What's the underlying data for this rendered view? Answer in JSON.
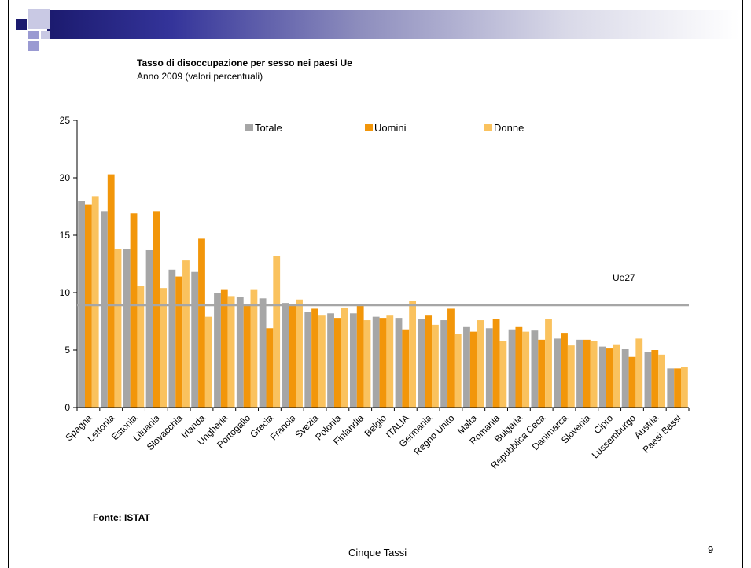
{
  "slide": {
    "footer": "Cinque Tassi",
    "page_number": "9",
    "source": "Fonte: ISTAT"
  },
  "chart_data": {
    "type": "bar",
    "title": "Tasso di disoccupazione per sesso nei paesi Ue",
    "subtitle": "Anno 2009 (valori percentuali)",
    "xlabel": "",
    "ylabel": "",
    "ylim": [
      0,
      25
    ],
    "yticks": [
      0,
      5,
      10,
      15,
      20,
      25
    ],
    "grid": false,
    "legend_position": "top",
    "categories": [
      "Spagna",
      "Lettonia",
      "Estonia",
      "Lituania",
      "Slovacchia",
      "Irlanda",
      "Ungheria",
      "Portogallo",
      "Grecia",
      "Francia",
      "Svezia",
      "Polonia",
      "Finlandia",
      "Belgio",
      "ITALIA",
      "Germania",
      "Regno Unito",
      "Malta",
      "Romania",
      "Bulgaria",
      "Repubblica Ceca",
      "Danimarca",
      "Slovenia",
      "Cipro",
      "Lussemburgo",
      "Austria",
      "Paesi Bassi"
    ],
    "series": [
      {
        "name": "Totale",
        "color": "#a6a6a6",
        "values": [
          18.0,
          17.1,
          13.8,
          13.7,
          12.0,
          11.8,
          10.0,
          9.6,
          9.5,
          9.1,
          8.3,
          8.2,
          8.2,
          7.9,
          7.8,
          7.7,
          7.6,
          7.0,
          6.9,
          6.8,
          6.7,
          6.0,
          5.9,
          5.3,
          5.1,
          4.8,
          3.4
        ]
      },
      {
        "name": "Uomini",
        "color": "#f2960a",
        "values": [
          17.7,
          20.3,
          16.9,
          17.1,
          11.4,
          14.7,
          10.3,
          8.9,
          6.9,
          8.9,
          8.6,
          7.8,
          8.9,
          7.8,
          6.8,
          8.0,
          8.6,
          6.6,
          7.7,
          7.0,
          5.9,
          6.5,
          5.9,
          5.2,
          4.4,
          5.0,
          3.4
        ]
      },
      {
        "name": "Donne",
        "color": "#fac25e",
        "values": [
          18.4,
          13.8,
          10.6,
          10.4,
          12.8,
          7.9,
          9.7,
          10.3,
          13.2,
          9.4,
          8.0,
          8.7,
          7.6,
          8.0,
          9.3,
          7.2,
          6.4,
          7.6,
          5.8,
          6.6,
          7.7,
          5.4,
          5.8,
          5.5,
          6.0,
          4.6,
          3.5
        ]
      }
    ],
    "reference_line": {
      "label": "Ue27",
      "value": 8.9,
      "color": "#a6a6a6"
    }
  }
}
